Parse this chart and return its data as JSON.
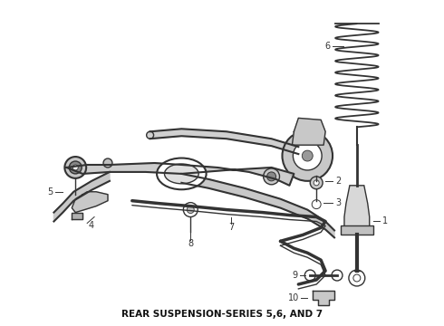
{
  "title": "REAR SUSPENSION-SERIES 5,6, AND 7",
  "title_fontsize": 7.5,
  "title_fontweight": "bold",
  "bg_color": "#ffffff",
  "fig_width": 4.9,
  "fig_height": 3.6,
  "dpi": 100,
  "line_color": "#333333",
  "label_fontsize": 7,
  "fill_color": "#c8c8c8"
}
